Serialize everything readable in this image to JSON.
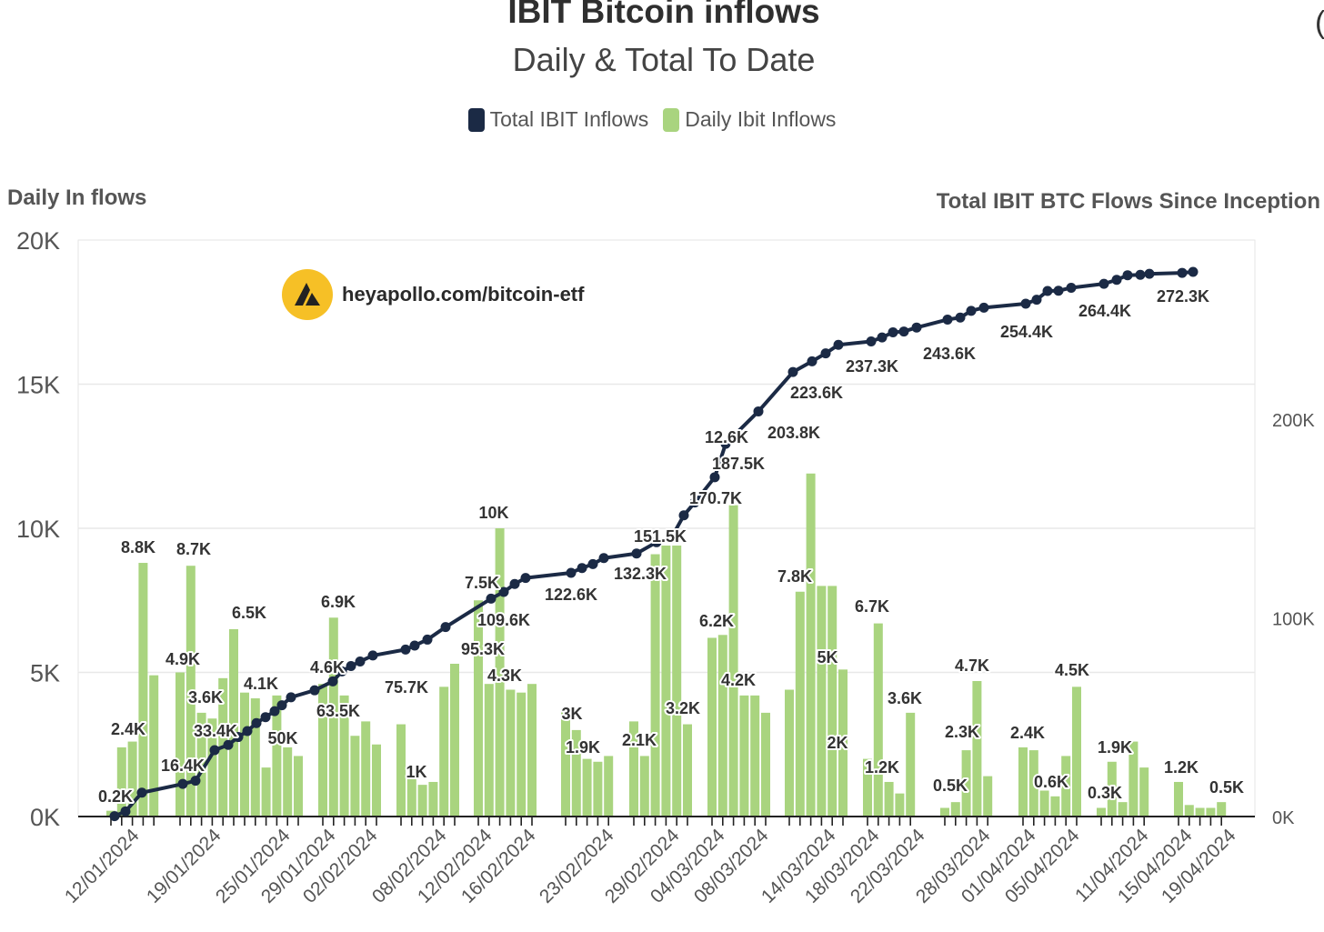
{
  "header": {
    "title": "IBIT Bitcoin inflows",
    "subtitle": "Daily & Total To Date",
    "top_right_mark": "("
  },
  "legend": [
    {
      "label": "Total IBIT Inflows",
      "color": "#1b2a45"
    },
    {
      "label": "Daily Ibit Inflows",
      "color": "#a9d47f"
    }
  ],
  "watermark": {
    "text": "heyapollo.com/bitcoin-etf"
  },
  "colors": {
    "bar": "#a9d47f",
    "line": "#1b2a45",
    "grid": "#e8e8e8",
    "axis": "#222222"
  },
  "chart_data": {
    "type": "bar",
    "y_left": {
      "label": "Daily In flows",
      "ticks": [
        "0K",
        "5K",
        "10K",
        "15K",
        "20K"
      ],
      "range": [
        0,
        20000
      ]
    },
    "y_right": {
      "label": "Total IBIT BTC Flows Since Inception",
      "ticks": [
        "0K",
        "100K",
        "200K"
      ],
      "range": [
        0,
        290000
      ]
    },
    "x_tick_labels": [
      "12/01/2024",
      "19/01/2024",
      "25/01/2024",
      "29/01/2024",
      "02/02/2024",
      "08/02/2024",
      "12/02/2024",
      "16/02/2024",
      "23/02/2024",
      "29/02/2024",
      "04/03/2024",
      "08/03/2024",
      "14/03/2024",
      "18/03/2024",
      "22/03/2024",
      "28/03/2024",
      "01/04/2024",
      "05/04/2024",
      "11/04/2024",
      "15/04/2024",
      "19/04/2024"
    ],
    "series": [
      {
        "name": "Daily Ibit Inflows",
        "values": [
          0.2,
          2.4,
          2.6,
          8.8,
          4.9,
          5.0,
          8.7,
          3.6,
          3.4,
          4.8,
          6.5,
          4.3,
          4.1,
          1.7,
          4.2,
          2.4,
          2.1,
          4.6,
          6.9,
          4.2,
          2.8,
          3.3,
          2.5,
          3.2,
          1.3,
          1.1,
          1.2,
          4.5,
          5.3,
          7.5,
          4.6,
          10.0,
          4.4,
          4.3,
          4.6,
          3.7,
          3.0,
          2.0,
          1.9,
          2.1,
          3.3,
          2.1,
          9.1,
          9.4,
          9.4,
          3.2,
          6.2,
          6.3,
          10.8,
          4.2,
          4.2,
          3.6,
          4.4,
          7.8,
          11.9,
          8.0,
          8.0,
          5.1,
          2.0,
          6.7,
          1.2,
          0.8,
          3.6,
          0.3,
          0.5,
          2.3,
          4.7,
          1.4,
          2.4,
          2.3,
          0.9,
          0.7,
          2.1,
          4.5,
          0.3,
          1.9,
          0.5,
          2.6,
          1.7,
          1.2,
          0.4,
          0.3,
          0.3,
          0.5
        ],
        "unit": "K BTC"
      },
      {
        "name": "Total IBIT Inflows",
        "values": [
          0.2,
          2.6,
          12.0,
          16.4,
          18.0,
          33.4,
          36.0,
          40.0,
          43.0,
          47.0,
          50.0,
          53.0,
          56.0,
          60.0,
          63.5,
          68.0,
          73.0,
          75.7,
          78.0,
          81.0,
          84.0,
          86.0,
          89.0,
          95.3,
          109.6,
          113.0,
          117.0,
          120.0,
          122.6,
          125.0,
          127.0,
          130.0,
          132.3,
          138.0,
          140.0,
          151.5,
          158.0,
          170.7,
          187.5,
          203.8,
          223.6,
          229.0,
          233.0,
          237.3,
          239.0,
          241.0,
          243.6,
          244.0,
          246.0,
          250.0,
          251.0,
          254.4,
          256.0,
          258.0,
          260.0,
          264.4,
          264.5,
          266.0,
          268.0,
          270.0,
          272.3,
          272.5,
          273.0,
          273.5,
          274.0
        ],
        "unit": "K BTC"
      }
    ],
    "data_labels": [
      "0.2K",
      "2.4K",
      "8.8K",
      "8.7K",
      "4.9K",
      "3.6K",
      "16.4K",
      "33.4K",
      "6.5K",
      "4.1K",
      "50K",
      "6.9K",
      "4.6K",
      "63.5K",
      "75.7K",
      "1K",
      "10K",
      "7.5K",
      "109.6K",
      "95.3K",
      "4.3K",
      "122.6K",
      "3K",
      "1.9K",
      "132.3K",
      "151.5K",
      "2.1K",
      "3.2K",
      "12.6K",
      "203.8K",
      "187.5K",
      "170.7K",
      "6.2K",
      "4.2K",
      "7.8K",
      "223.6K",
      "237.3K",
      "5K",
      "2K",
      "6.7K",
      "1.2K",
      "3.6K",
      "243.6K",
      "4.7K",
      "2.3K",
      "0.5K",
      "254.4K",
      "2.4K",
      "4.5K",
      "0.6K",
      "264.4K",
      "1.9K",
      "0.3K",
      "272.3K",
      "1.2K",
      "0.5K"
    ],
    "grid": true,
    "legend_position": "top-center"
  }
}
